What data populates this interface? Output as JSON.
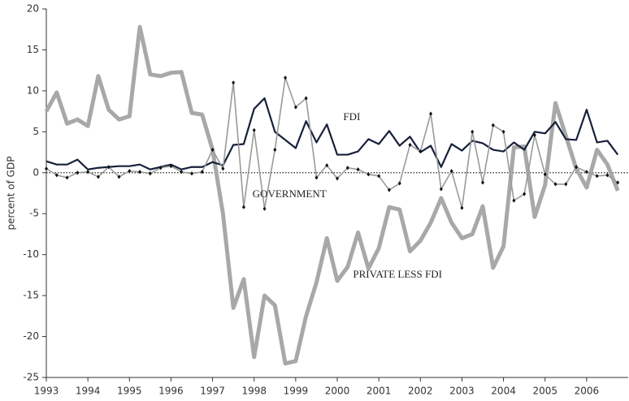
{
  "chart_data": {
    "type": "line",
    "ylabel": "percent of GDP",
    "annotations": [
      {
        "text": "FDI",
        "x": 2000.35,
        "y": 6.7
      },
      {
        "text": "GOVERNMENT",
        "x": 1998.85,
        "y": -2.7
      },
      {
        "text": "PRIVATE LESS FDI",
        "x": 2001.45,
        "y": -12.5
      }
    ],
    "x": [
      1993,
      1993.25,
      1993.5,
      1993.75,
      1994,
      1994.25,
      1994.5,
      1994.75,
      1995,
      1995.25,
      1995.5,
      1995.75,
      1996,
      1996.25,
      1996.5,
      1996.75,
      1997,
      1997.25,
      1997.5,
      1997.75,
      1998,
      1998.25,
      1998.5,
      1998.75,
      1999,
      1999.25,
      1999.5,
      1999.75,
      2000,
      2000.25,
      2000.5,
      2000.75,
      2001,
      2001.25,
      2001.5,
      2001.75,
      2002,
      2002.25,
      2002.5,
      2002.75,
      2003,
      2003.25,
      2003.5,
      2003.75,
      2004,
      2004.25,
      2004.5,
      2004.75,
      2005,
      2005.25,
      2005.5,
      2005.75,
      2006,
      2006.25,
      2006.5,
      2006.75
    ],
    "series": [
      {
        "name": "PRIVATE LESS FDI",
        "color": "#a8a8a8",
        "width": 5,
        "markers": false,
        "values": [
          7.5,
          9.8,
          6,
          6.5,
          5.7,
          11.8,
          7.7,
          6.5,
          6.9,
          17.8,
          12,
          11.8,
          12.2,
          12.3,
          7.3,
          7.1,
          2.8,
          -5,
          -16.5,
          -13,
          -22.5,
          -15,
          -16.2,
          -23.3,
          -23,
          -17.5,
          -13.4,
          -8,
          -13.2,
          -11.5,
          -7.3,
          -11.7,
          -9.2,
          -4.2,
          -4.5,
          -9.6,
          -8.3,
          -6.1,
          -3.1,
          -6.1,
          -8,
          -7.5,
          -4.1,
          -11.6,
          -9,
          3.1,
          3.2,
          -5.4,
          -1.5,
          8.5,
          4.5,
          0.5,
          -1.8,
          2.8,
          1,
          -2.2
        ]
      },
      {
        "name": "FDI",
        "color": "#16203a",
        "width": 2.2,
        "markers": false,
        "values": [
          1.4,
          1.0,
          1.0,
          1.6,
          0.4,
          0.6,
          0.7,
          0.8,
          0.8,
          1.0,
          0.4,
          0.7,
          1.0,
          0.4,
          0.7,
          0.7,
          1.3,
          0.9,
          3.4,
          3.5,
          7.8,
          9.1,
          5.0,
          4.0,
          3.0,
          6.3,
          3.7,
          5.9,
          2.2,
          2.2,
          2.6,
          4.1,
          3.5,
          5.1,
          3.3,
          4.4,
          2.5,
          3.3,
          0.7,
          3.5,
          2.7,
          3.9,
          3.6,
          2.8,
          2.6,
          3.7,
          2.8,
          5.0,
          4.8,
          6.2,
          4.1,
          4.0,
          7.7,
          3.7,
          3.9,
          2.2
        ]
      },
      {
        "name": "GOVERNMENT",
        "color": "#9a9a9a",
        "width": 1.6,
        "markers": true,
        "values": [
          0.5,
          -0.3,
          -0.6,
          0,
          0.1,
          -0.5,
          0.7,
          -0.5,
          0.2,
          0.1,
          -0.1,
          0.6,
          0.8,
          0.1,
          -0.1,
          0.1,
          2.8,
          0.5,
          11,
          -4.2,
          5.2,
          -4.4,
          2.8,
          11.6,
          8,
          9.1,
          -0.6,
          0.9,
          -0.7,
          0.6,
          0.4,
          -0.2,
          -0.4,
          -2.1,
          -1.3,
          3.4,
          2.6,
          7.2,
          -2,
          0.2,
          -4.3,
          5,
          -1.2,
          5.8,
          5,
          -3.4,
          -2.6,
          4.6,
          -0.2,
          -1.4,
          -1.4,
          0.7,
          0.1,
          -0.4,
          -0.3,
          -1.2
        ]
      }
    ],
    "xlim": [
      1993,
      2007
    ],
    "xticks": [
      1993,
      1994,
      1995,
      1996,
      1997,
      1998,
      1999,
      2000,
      2001,
      2002,
      2003,
      2004,
      2005,
      2006
    ],
    "ylim": [
      -25,
      20
    ],
    "yticks": [
      -25,
      -20,
      -15,
      -10,
      -5,
      0,
      5,
      10,
      15,
      20
    ],
    "grid": false,
    "zero_line": "dotted"
  }
}
